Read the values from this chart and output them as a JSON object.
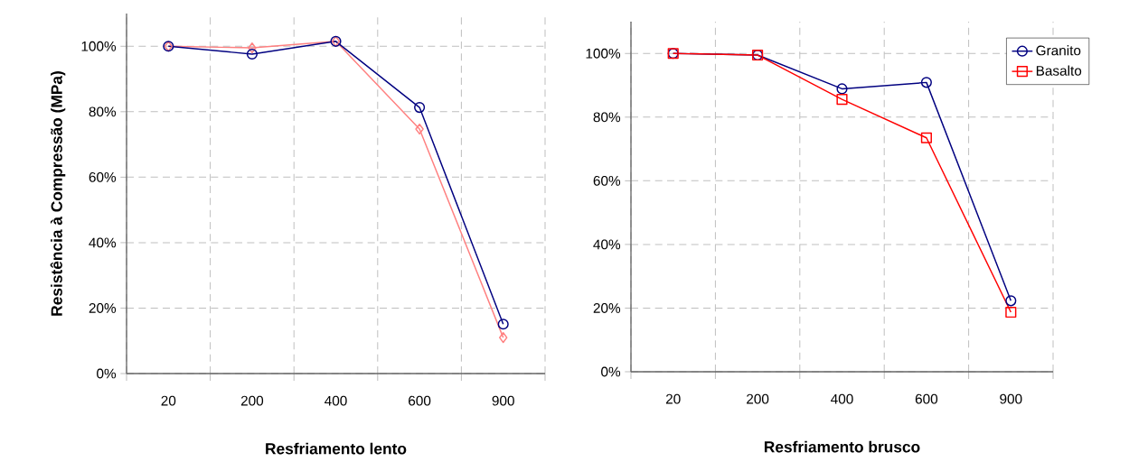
{
  "chart_data": [
    {
      "type": "line",
      "xlabel": "Resfriamento lento",
      "ylabel": "Resistência à Compressão (MPa)",
      "categories": [
        "20",
        "200",
        "400",
        "600",
        "900"
      ],
      "ylim": [
        0,
        110
      ],
      "yticks": [
        {
          "value": 0,
          "label": "0%"
        },
        {
          "value": 20,
          "label": "20%"
        },
        {
          "value": 40,
          "label": "40%"
        },
        {
          "value": 60,
          "label": "60%"
        },
        {
          "value": 80,
          "label": "80%"
        },
        {
          "value": 100,
          "label": "100%"
        }
      ],
      "grid": true,
      "legend": false,
      "series": [
        {
          "color": "#ff8080",
          "marker": "diamond",
          "values": [
            100,
            99.5,
            101.5,
            74.7,
            11.0
          ]
        },
        {
          "color": "#000080",
          "marker": "circle",
          "values": [
            100,
            97.6,
            101.5,
            81.3,
            15.1
          ]
        }
      ]
    },
    {
      "type": "line",
      "xlabel": "Resfriamento brusco",
      "categories": [
        "20",
        "200",
        "400",
        "600",
        "900"
      ],
      "ylim": [
        0,
        110
      ],
      "yticks": [
        {
          "value": 0,
          "label": "0%"
        },
        {
          "value": 20,
          "label": "20%"
        },
        {
          "value": 40,
          "label": "40%"
        },
        {
          "value": 60,
          "label": "60%"
        },
        {
          "value": 80,
          "label": "80%"
        },
        {
          "value": 100,
          "label": "100%"
        }
      ],
      "grid": true,
      "legend": "top right",
      "series": [
        {
          "name": "Granito",
          "color": "#000080",
          "marker": "circle",
          "values": [
            100,
            99.5,
            88.9,
            90.9,
            22.3
          ]
        },
        {
          "name": "Basalto",
          "color": "#ff0000",
          "marker": "square",
          "values": [
            100,
            99.5,
            85.6,
            73.5,
            18.7
          ]
        }
      ]
    }
  ]
}
